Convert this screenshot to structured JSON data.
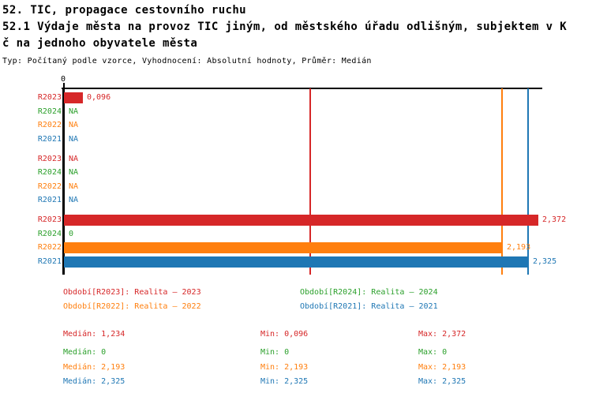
{
  "header": {
    "line1": "52. TIC, propagace cestovního ruchu",
    "line2": "52.1 Výdaje města na provoz TIC jiným, od městského úřadu odlišným, subjektem v K",
    "line3": "č na jednoho obyvatele města",
    "meta": "Typ: Počítaný podle vzorce, Vyhodnocení: Absolutní hodnoty, Průměr: Medián"
  },
  "colors": {
    "R2023": "#d62728",
    "R2024": "#2ca02c",
    "R2022": "#ff7f0e",
    "R2021": "#1f77b4",
    "axis": "#000000",
    "group_default": "#000000",
    "group_highlight": "#d62728"
  },
  "chart_data": {
    "type": "bar",
    "orientation": "horizontal",
    "title": "52.1 Výdaje města na provoz TIC jiným, od městského úřadu odlišným, subjektem v Kč na jednoho obyvatele města",
    "x_axis": {
      "origin_label": "0",
      "min": 0,
      "max": 2.395,
      "grid": false
    },
    "series_order": [
      "R2023",
      "R2024",
      "R2022",
      "R2021"
    ],
    "median_lines": [
      {
        "series": "R2023",
        "value": 1.234,
        "color": "#d62728"
      },
      {
        "series": "R2024",
        "value": 0,
        "color": "#2ca02c"
      },
      {
        "series": "R2022",
        "value": 2.193,
        "color": "#ff7f0e"
      },
      {
        "series": "R2021",
        "value": 2.325,
        "color": "#1f77b4"
      }
    ],
    "groups": [
      {
        "id": "76",
        "id_color": "#000000",
        "bars": [
          {
            "series": "R2023",
            "value": 0.096,
            "label": "0,096",
            "color": "#d62728"
          },
          {
            "series": "R2024",
            "value": null,
            "label": "NA",
            "color": "#2ca02c"
          },
          {
            "series": "R2022",
            "value": null,
            "label": "NA",
            "color": "#ff7f0e"
          },
          {
            "series": "R2021",
            "value": null,
            "label": "NA",
            "color": "#1f77b4"
          }
        ]
      },
      {
        "id": "111",
        "id_color": "#000000",
        "bars": [
          {
            "series": "R2023",
            "value": null,
            "label": "NA",
            "color": "#d62728"
          },
          {
            "series": "R2024",
            "value": null,
            "label": "NA",
            "color": "#2ca02c"
          },
          {
            "series": "R2022",
            "value": null,
            "label": "NA",
            "color": "#ff7f0e"
          },
          {
            "series": "R2021",
            "value": null,
            "label": "NA",
            "color": "#1f77b4"
          }
        ]
      },
      {
        "id": "139",
        "id_color": "#d62728",
        "bars": [
          {
            "series": "R2023",
            "value": 2.372,
            "label": "2,372",
            "color": "#d62728"
          },
          {
            "series": "R2024",
            "value": 0,
            "label": "0",
            "color": "#2ca02c"
          },
          {
            "series": "R2022",
            "value": 2.193,
            "label": "2,193",
            "color": "#ff7f0e"
          },
          {
            "series": "R2021",
            "value": 2.325,
            "label": "2,325",
            "color": "#1f77b4"
          }
        ]
      }
    ]
  },
  "legend": [
    {
      "text": "Období[R2023]: Realita – 2023",
      "color": "#d62728"
    },
    {
      "text": "Období[R2024]: Realita – 2024",
      "color": "#2ca02c"
    },
    {
      "text": "Období[R2022]: Realita – 2022",
      "color": "#ff7f0e"
    },
    {
      "text": "Období[R2021]: Realita – 2021",
      "color": "#1f77b4"
    }
  ],
  "stats": [
    {
      "series": "R2023",
      "median": "Medián: 1,234",
      "min": "Min: 0,096",
      "max": "Max: 2,372",
      "color": "#d62728"
    },
    {
      "series": "R2024",
      "median": "Medián: 0",
      "min": "Min: 0",
      "max": "Max: 0",
      "color": "#2ca02c"
    },
    {
      "series": "R2022",
      "median": "Medián: 2,193",
      "min": "Min: 2,193",
      "max": "Max: 2,193",
      "color": "#ff7f0e"
    },
    {
      "series": "R2021",
      "median": "Medián: 2,325",
      "min": "Min: 2,325",
      "max": "Max: 2,325",
      "color": "#1f77b4"
    }
  ]
}
